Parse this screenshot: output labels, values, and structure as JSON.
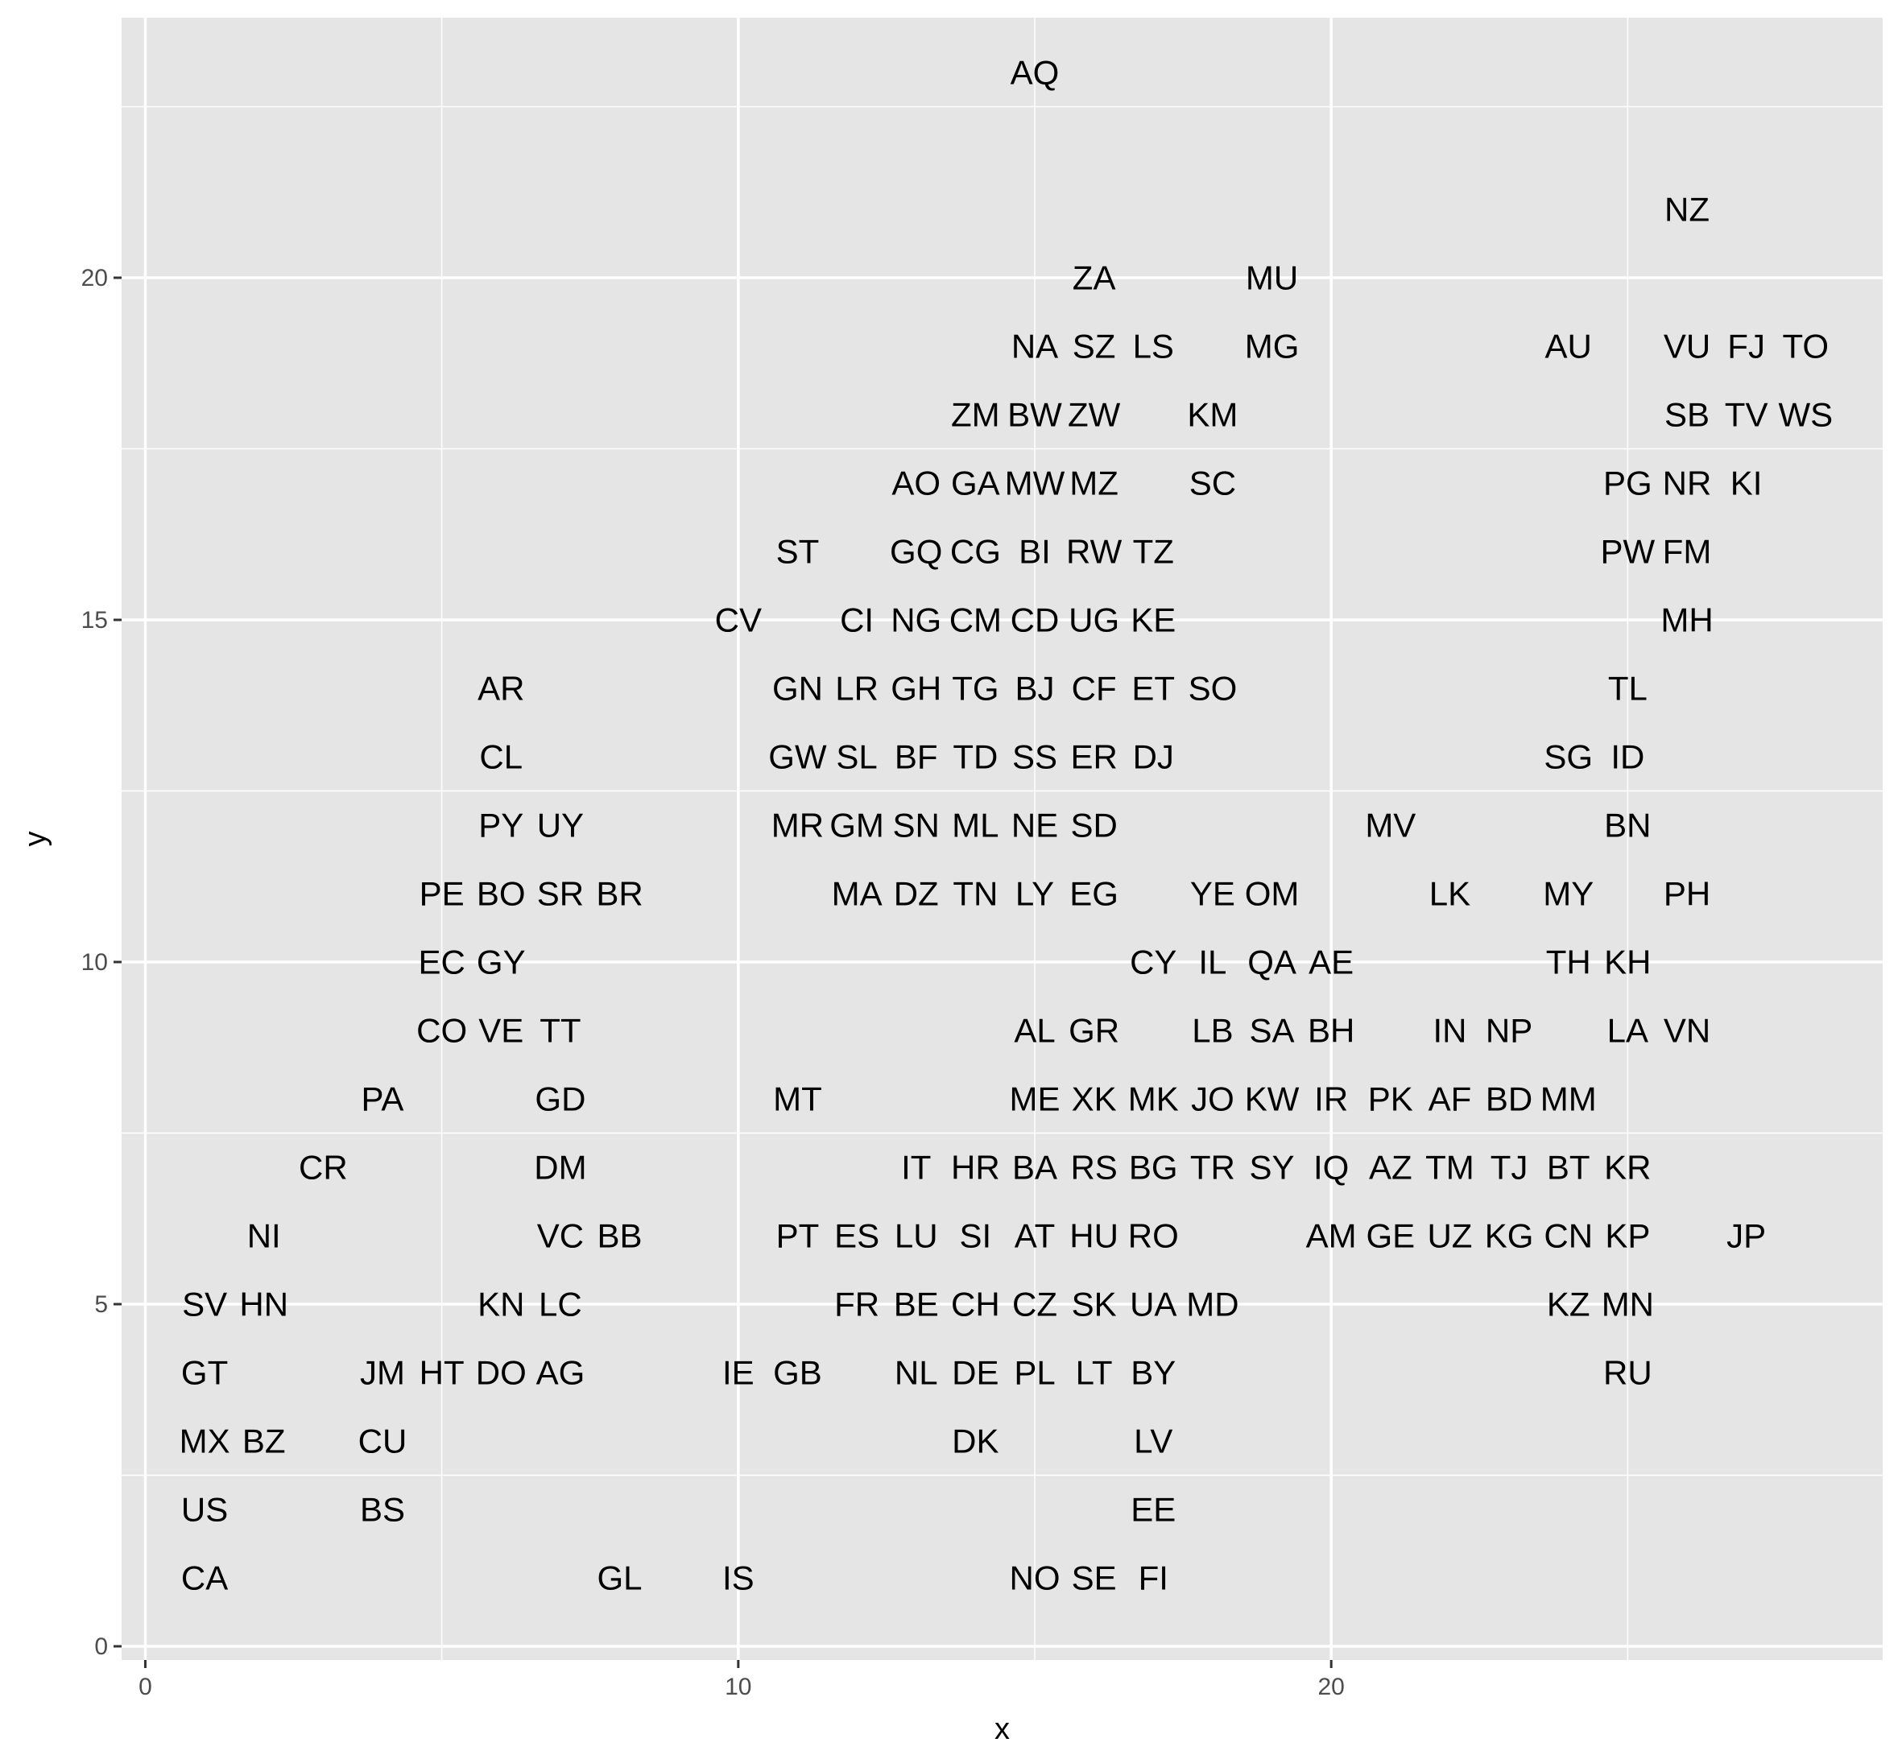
{
  "chart_data": {
    "type": "scatter",
    "title": "",
    "xlabel": "x",
    "ylabel": "y",
    "xlim": [
      -0.4,
      29.3
    ],
    "ylim": [
      -0.2,
      23.8
    ],
    "x_ticks": [
      0,
      10,
      20
    ],
    "y_ticks": [
      0,
      5,
      10,
      15,
      20
    ],
    "grid": true,
    "panel_background": "#e5e5e5",
    "grid_color": "#ffffff",
    "points": [
      {
        "label": "AQ",
        "x": 15,
        "y": 23
      },
      {
        "label": "NZ",
        "x": 26,
        "y": 21
      },
      {
        "label": "ZA",
        "x": 16,
        "y": 20
      },
      {
        "label": "MU",
        "x": 19,
        "y": 20
      },
      {
        "label": "NA",
        "x": 15,
        "y": 19
      },
      {
        "label": "SZ",
        "x": 16,
        "y": 19
      },
      {
        "label": "LS",
        "x": 17,
        "y": 19
      },
      {
        "label": "MG",
        "x": 19,
        "y": 19
      },
      {
        "label": "AU",
        "x": 24,
        "y": 19
      },
      {
        "label": "VU",
        "x": 26,
        "y": 19
      },
      {
        "label": "FJ",
        "x": 27,
        "y": 19
      },
      {
        "label": "TO",
        "x": 28,
        "y": 19
      },
      {
        "label": "ZM",
        "x": 14,
        "y": 18
      },
      {
        "label": "BW",
        "x": 15,
        "y": 18
      },
      {
        "label": "ZW",
        "x": 16,
        "y": 18
      },
      {
        "label": "KM",
        "x": 18,
        "y": 18
      },
      {
        "label": "SB",
        "x": 26,
        "y": 18
      },
      {
        "label": "TV",
        "x": 27,
        "y": 18
      },
      {
        "label": "WS",
        "x": 28,
        "y": 18
      },
      {
        "label": "AO",
        "x": 13,
        "y": 17
      },
      {
        "label": "GA",
        "x": 14,
        "y": 17
      },
      {
        "label": "MW",
        "x": 15,
        "y": 17
      },
      {
        "label": "MZ",
        "x": 16,
        "y": 17
      },
      {
        "label": "SC",
        "x": 18,
        "y": 17
      },
      {
        "label": "PG",
        "x": 25,
        "y": 17
      },
      {
        "label": "NR",
        "x": 26,
        "y": 17
      },
      {
        "label": "KI",
        "x": 27,
        "y": 17
      },
      {
        "label": "ST",
        "x": 11,
        "y": 16
      },
      {
        "label": "GQ",
        "x": 13,
        "y": 16
      },
      {
        "label": "CG",
        "x": 14,
        "y": 16
      },
      {
        "label": "BI",
        "x": 15,
        "y": 16
      },
      {
        "label": "RW",
        "x": 16,
        "y": 16
      },
      {
        "label": "TZ",
        "x": 17,
        "y": 16
      },
      {
        "label": "PW",
        "x": 25,
        "y": 16
      },
      {
        "label": "FM",
        "x": 26,
        "y": 16
      },
      {
        "label": "CV",
        "x": 10,
        "y": 15
      },
      {
        "label": "CI",
        "x": 12,
        "y": 15
      },
      {
        "label": "NG",
        "x": 13,
        "y": 15
      },
      {
        "label": "CM",
        "x": 14,
        "y": 15
      },
      {
        "label": "CD",
        "x": 15,
        "y": 15
      },
      {
        "label": "UG",
        "x": 16,
        "y": 15
      },
      {
        "label": "KE",
        "x": 17,
        "y": 15
      },
      {
        "label": "MH",
        "x": 26,
        "y": 15
      },
      {
        "label": "AR",
        "x": 6,
        "y": 14
      },
      {
        "label": "GN",
        "x": 11,
        "y": 14
      },
      {
        "label": "LR",
        "x": 12,
        "y": 14
      },
      {
        "label": "GH",
        "x": 13,
        "y": 14
      },
      {
        "label": "TG",
        "x": 14,
        "y": 14
      },
      {
        "label": "BJ",
        "x": 15,
        "y": 14
      },
      {
        "label": "CF",
        "x": 16,
        "y": 14
      },
      {
        "label": "ET",
        "x": 17,
        "y": 14
      },
      {
        "label": "SO",
        "x": 18,
        "y": 14
      },
      {
        "label": "TL",
        "x": 25,
        "y": 14
      },
      {
        "label": "CL",
        "x": 6,
        "y": 13
      },
      {
        "label": "GW",
        "x": 11,
        "y": 13
      },
      {
        "label": "SL",
        "x": 12,
        "y": 13
      },
      {
        "label": "BF",
        "x": 13,
        "y": 13
      },
      {
        "label": "TD",
        "x": 14,
        "y": 13
      },
      {
        "label": "SS",
        "x": 15,
        "y": 13
      },
      {
        "label": "ER",
        "x": 16,
        "y": 13
      },
      {
        "label": "DJ",
        "x": 17,
        "y": 13
      },
      {
        "label": "SG",
        "x": 24,
        "y": 13
      },
      {
        "label": "ID",
        "x": 25,
        "y": 13
      },
      {
        "label": "PY",
        "x": 6,
        "y": 12
      },
      {
        "label": "UY",
        "x": 7,
        "y": 12
      },
      {
        "label": "MR",
        "x": 11,
        "y": 12
      },
      {
        "label": "GM",
        "x": 12,
        "y": 12
      },
      {
        "label": "SN",
        "x": 13,
        "y": 12
      },
      {
        "label": "ML",
        "x": 14,
        "y": 12
      },
      {
        "label": "NE",
        "x": 15,
        "y": 12
      },
      {
        "label": "SD",
        "x": 16,
        "y": 12
      },
      {
        "label": "MV",
        "x": 21,
        "y": 12
      },
      {
        "label": "BN",
        "x": 25,
        "y": 12
      },
      {
        "label": "PE",
        "x": 5,
        "y": 11
      },
      {
        "label": "BO",
        "x": 6,
        "y": 11
      },
      {
        "label": "SR",
        "x": 7,
        "y": 11
      },
      {
        "label": "BR",
        "x": 8,
        "y": 11
      },
      {
        "label": "MA",
        "x": 12,
        "y": 11
      },
      {
        "label": "DZ",
        "x": 13,
        "y": 11
      },
      {
        "label": "TN",
        "x": 14,
        "y": 11
      },
      {
        "label": "LY",
        "x": 15,
        "y": 11
      },
      {
        "label": "EG",
        "x": 16,
        "y": 11
      },
      {
        "label": "YE",
        "x": 18,
        "y": 11
      },
      {
        "label": "OM",
        "x": 19,
        "y": 11
      },
      {
        "label": "LK",
        "x": 22,
        "y": 11
      },
      {
        "label": "MY",
        "x": 24,
        "y": 11
      },
      {
        "label": "PH",
        "x": 26,
        "y": 11
      },
      {
        "label": "EC",
        "x": 5,
        "y": 10
      },
      {
        "label": "GY",
        "x": 6,
        "y": 10
      },
      {
        "label": "CY",
        "x": 17,
        "y": 10
      },
      {
        "label": "IL",
        "x": 18,
        "y": 10
      },
      {
        "label": "QA",
        "x": 19,
        "y": 10
      },
      {
        "label": "AE",
        "x": 20,
        "y": 10
      },
      {
        "label": "TH",
        "x": 24,
        "y": 10
      },
      {
        "label": "KH",
        "x": 25,
        "y": 10
      },
      {
        "label": "CO",
        "x": 5,
        "y": 9
      },
      {
        "label": "VE",
        "x": 6,
        "y": 9
      },
      {
        "label": "TT",
        "x": 7,
        "y": 9
      },
      {
        "label": "AL",
        "x": 15,
        "y": 9
      },
      {
        "label": "GR",
        "x": 16,
        "y": 9
      },
      {
        "label": "LB",
        "x": 18,
        "y": 9
      },
      {
        "label": "SA",
        "x": 19,
        "y": 9
      },
      {
        "label": "BH",
        "x": 20,
        "y": 9
      },
      {
        "label": "IN",
        "x": 22,
        "y": 9
      },
      {
        "label": "NP",
        "x": 23,
        "y": 9
      },
      {
        "label": "LA",
        "x": 25,
        "y": 9
      },
      {
        "label": "VN",
        "x": 26,
        "y": 9
      },
      {
        "label": "PA",
        "x": 4,
        "y": 8
      },
      {
        "label": "GD",
        "x": 7,
        "y": 8
      },
      {
        "label": "MT",
        "x": 11,
        "y": 8
      },
      {
        "label": "ME",
        "x": 15,
        "y": 8
      },
      {
        "label": "XK",
        "x": 16,
        "y": 8
      },
      {
        "label": "MK",
        "x": 17,
        "y": 8
      },
      {
        "label": "JO",
        "x": 18,
        "y": 8
      },
      {
        "label": "KW",
        "x": 19,
        "y": 8
      },
      {
        "label": "IR",
        "x": 20,
        "y": 8
      },
      {
        "label": "PK",
        "x": 21,
        "y": 8
      },
      {
        "label": "AF",
        "x": 22,
        "y": 8
      },
      {
        "label": "BD",
        "x": 23,
        "y": 8
      },
      {
        "label": "MM",
        "x": 24,
        "y": 8
      },
      {
        "label": "CR",
        "x": 3,
        "y": 7
      },
      {
        "label": "DM",
        "x": 7,
        "y": 7
      },
      {
        "label": "IT",
        "x": 13,
        "y": 7
      },
      {
        "label": "HR",
        "x": 14,
        "y": 7
      },
      {
        "label": "BA",
        "x": 15,
        "y": 7
      },
      {
        "label": "RS",
        "x": 16,
        "y": 7
      },
      {
        "label": "BG",
        "x": 17,
        "y": 7
      },
      {
        "label": "TR",
        "x": 18,
        "y": 7
      },
      {
        "label": "SY",
        "x": 19,
        "y": 7
      },
      {
        "label": "IQ",
        "x": 20,
        "y": 7
      },
      {
        "label": "AZ",
        "x": 21,
        "y": 7
      },
      {
        "label": "TM",
        "x": 22,
        "y": 7
      },
      {
        "label": "TJ",
        "x": 23,
        "y": 7
      },
      {
        "label": "BT",
        "x": 24,
        "y": 7
      },
      {
        "label": "KR",
        "x": 25,
        "y": 7
      },
      {
        "label": "NI",
        "x": 2,
        "y": 6
      },
      {
        "label": "VC",
        "x": 7,
        "y": 6
      },
      {
        "label": "BB",
        "x": 8,
        "y": 6
      },
      {
        "label": "PT",
        "x": 11,
        "y": 6
      },
      {
        "label": "ES",
        "x": 12,
        "y": 6
      },
      {
        "label": "LU",
        "x": 13,
        "y": 6
      },
      {
        "label": "SI",
        "x": 14,
        "y": 6
      },
      {
        "label": "AT",
        "x": 15,
        "y": 6
      },
      {
        "label": "HU",
        "x": 16,
        "y": 6
      },
      {
        "label": "RO",
        "x": 17,
        "y": 6
      },
      {
        "label": "AM",
        "x": 20,
        "y": 6
      },
      {
        "label": "GE",
        "x": 21,
        "y": 6
      },
      {
        "label": "UZ",
        "x": 22,
        "y": 6
      },
      {
        "label": "KG",
        "x": 23,
        "y": 6
      },
      {
        "label": "CN",
        "x": 24,
        "y": 6
      },
      {
        "label": "KP",
        "x": 25,
        "y": 6
      },
      {
        "label": "JP",
        "x": 27,
        "y": 6
      },
      {
        "label": "SV",
        "x": 1,
        "y": 5
      },
      {
        "label": "HN",
        "x": 2,
        "y": 5
      },
      {
        "label": "KN",
        "x": 6,
        "y": 5
      },
      {
        "label": "LC",
        "x": 7,
        "y": 5
      },
      {
        "label": "FR",
        "x": 12,
        "y": 5
      },
      {
        "label": "BE",
        "x": 13,
        "y": 5
      },
      {
        "label": "CH",
        "x": 14,
        "y": 5
      },
      {
        "label": "CZ",
        "x": 15,
        "y": 5
      },
      {
        "label": "SK",
        "x": 16,
        "y": 5
      },
      {
        "label": "UA",
        "x": 17,
        "y": 5
      },
      {
        "label": "MD",
        "x": 18,
        "y": 5
      },
      {
        "label": "KZ",
        "x": 24,
        "y": 5
      },
      {
        "label": "MN",
        "x": 25,
        "y": 5
      },
      {
        "label": "GT",
        "x": 1,
        "y": 4
      },
      {
        "label": "JM",
        "x": 4,
        "y": 4
      },
      {
        "label": "HT",
        "x": 5,
        "y": 4
      },
      {
        "label": "DO",
        "x": 6,
        "y": 4
      },
      {
        "label": "AG",
        "x": 7,
        "y": 4
      },
      {
        "label": "IE",
        "x": 10,
        "y": 4
      },
      {
        "label": "GB",
        "x": 11,
        "y": 4
      },
      {
        "label": "NL",
        "x": 13,
        "y": 4
      },
      {
        "label": "DE",
        "x": 14,
        "y": 4
      },
      {
        "label": "PL",
        "x": 15,
        "y": 4
      },
      {
        "label": "LT",
        "x": 16,
        "y": 4
      },
      {
        "label": "BY",
        "x": 17,
        "y": 4
      },
      {
        "label": "RU",
        "x": 25,
        "y": 4
      },
      {
        "label": "MX",
        "x": 1,
        "y": 3
      },
      {
        "label": "BZ",
        "x": 2,
        "y": 3
      },
      {
        "label": "CU",
        "x": 4,
        "y": 3
      },
      {
        "label": "DK",
        "x": 14,
        "y": 3
      },
      {
        "label": "LV",
        "x": 17,
        "y": 3
      },
      {
        "label": "US",
        "x": 1,
        "y": 2
      },
      {
        "label": "BS",
        "x": 4,
        "y": 2
      },
      {
        "label": "EE",
        "x": 17,
        "y": 2
      },
      {
        "label": "CA",
        "x": 1,
        "y": 1
      },
      {
        "label": "GL",
        "x": 8,
        "y": 1
      },
      {
        "label": "IS",
        "x": 10,
        "y": 1
      },
      {
        "label": "NO",
        "x": 15,
        "y": 1
      },
      {
        "label": "SE",
        "x": 16,
        "y": 1
      },
      {
        "label": "FI",
        "x": 17,
        "y": 1
      }
    ]
  }
}
